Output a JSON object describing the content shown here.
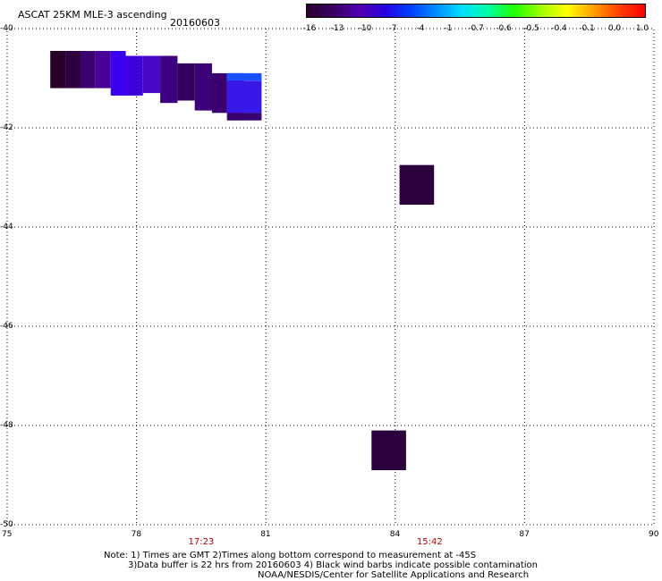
{
  "header": {
    "title": "ASCAT 25KM MLE-3 ascending",
    "date": "20160603"
  },
  "colorbar": {
    "labels": [
      "-16",
      "-13",
      "-10",
      "-7",
      "-4",
      "-1",
      "-0.7",
      "-0.6",
      "-0.5",
      "-0.4",
      "-0.1",
      "0.0",
      "1.0"
    ],
    "colors": [
      "#2a0030",
      "#3a0060",
      "#5000b0",
      "#2a00e0",
      "#0040ff",
      "#0090ff",
      "#00e0ff",
      "#00ffa0",
      "#20ff00",
      "#a0ff00",
      "#ffff00",
      "#ffa000",
      "#ff4000",
      "#ff0000"
    ]
  },
  "map": {
    "lon_range": [
      75,
      90
    ],
    "lat_range": [
      -40,
      -50
    ],
    "lon_ticks": [
      "75",
      "78",
      "81",
      "84",
      "87",
      "90"
    ],
    "lat_ticks": [
      "-40",
      "-42",
      "-44",
      "-46",
      "-48",
      "-50"
    ],
    "cells": [
      {
        "lon": 76.0,
        "lat": -40.45,
        "w": 0.35,
        "h": 0.75,
        "color": "#260028"
      },
      {
        "lon": 76.35,
        "lat": -40.45,
        "w": 0.35,
        "h": 0.75,
        "color": "#2e0040"
      },
      {
        "lon": 76.7,
        "lat": -40.45,
        "w": 0.35,
        "h": 0.75,
        "color": "#3c0070"
      },
      {
        "lon": 77.05,
        "lat": -40.45,
        "w": 0.35,
        "h": 0.75,
        "color": "#4a0098"
      },
      {
        "lon": 77.4,
        "lat": -40.45,
        "w": 0.35,
        "h": 0.9,
        "color": "#3a00f0"
      },
      {
        "lon": 77.75,
        "lat": -40.55,
        "w": 0.4,
        "h": 0.8,
        "color": "#4000e0"
      },
      {
        "lon": 78.15,
        "lat": -40.55,
        "w": 0.4,
        "h": 0.75,
        "color": "#4808c8"
      },
      {
        "lon": 78.55,
        "lat": -40.55,
        "w": 0.4,
        "h": 0.95,
        "color": "#3c0080"
      },
      {
        "lon": 78.95,
        "lat": -40.7,
        "w": 0.4,
        "h": 0.75,
        "color": "#340060"
      },
      {
        "lon": 79.35,
        "lat": -40.7,
        "w": 0.4,
        "h": 0.95,
        "color": "#3c0078"
      },
      {
        "lon": 79.75,
        "lat": -40.9,
        "w": 0.35,
        "h": 0.8,
        "color": "#3a0070"
      },
      {
        "lon": 80.1,
        "lat": -40.9,
        "w": 0.4,
        "h": 0.95,
        "color": "#4a0098"
      },
      {
        "lon": 80.1,
        "lat": -40.9,
        "w": 0.8,
        "h": 0.15,
        "color": "#1a50ff"
      },
      {
        "lon": 80.1,
        "lat": -41.05,
        "w": 0.8,
        "h": 0.65,
        "color": "#3818e8"
      },
      {
        "lon": 80.1,
        "lat": -41.7,
        "w": 0.8,
        "h": 0.15,
        "color": "#3a0070"
      },
      {
        "lon": 84.1,
        "lat": -42.75,
        "w": 0.8,
        "h": 0.8,
        "color": "#2c003c"
      },
      {
        "lon": 83.45,
        "lat": -48.1,
        "w": 0.8,
        "h": 0.8,
        "color": "#2c003c"
      }
    ]
  },
  "times": [
    {
      "text": "17:23",
      "lon": 79.5
    },
    {
      "text": "15:42",
      "lon": 84.8
    }
  ],
  "notes": [
    "Note: 1) Times are GMT 2)Times along bottom correspond to measurement at -45S",
    "3)Data buffer is 22 hrs from 20160603 4) Black wind barbs indicate possible contamination",
    "NOAA/NESDIS/Center for Satellite Applications and Research"
  ]
}
